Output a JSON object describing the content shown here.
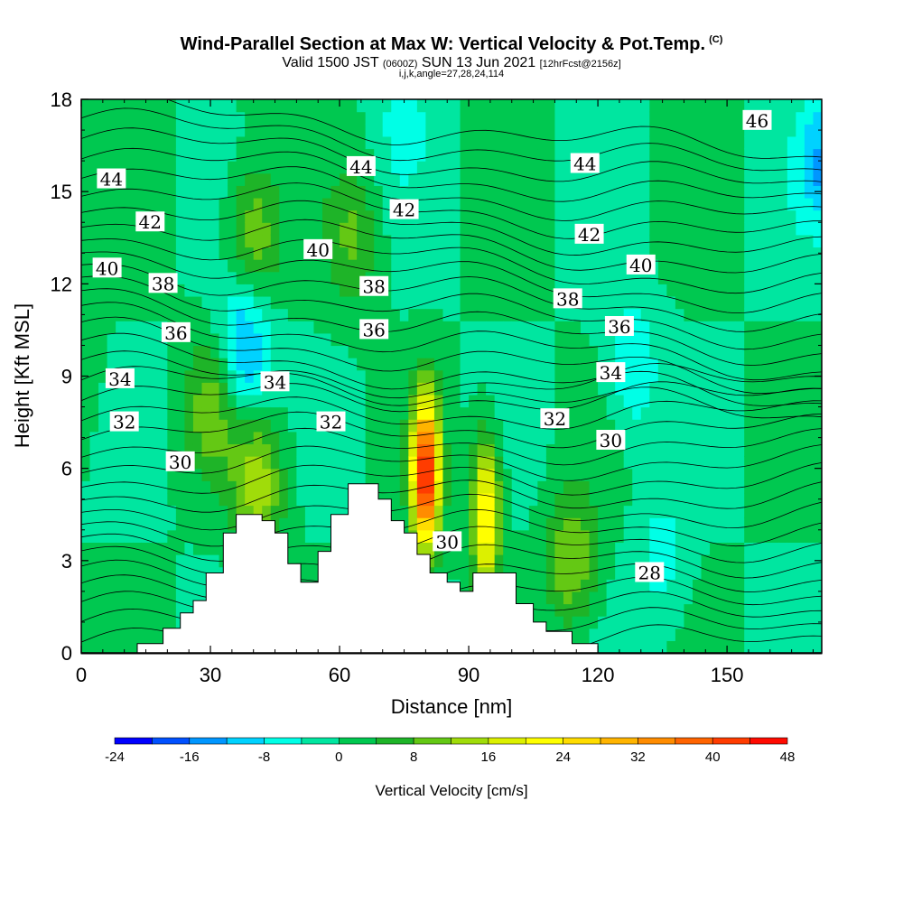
{
  "header": {
    "title": "Wind-Parallel Section at Max W: Vertical Velocity & Pot.Temp.",
    "copyright": "(C)",
    "valid_prefix": "Valid 1500 JST",
    "valid_utc": "(0600Z)",
    "valid_date": "SUN 13 Jun 2021",
    "forecast": "[12hrFcst@2156z]",
    "indices": "i,j,k,angle=27,28,24,114"
  },
  "chart_data": {
    "type": "heatmap",
    "xlabel": "Distance [nm]",
    "ylabel": "Height [Kft MSL]",
    "xlim": [
      0,
      172
    ],
    "ylim": [
      0,
      18
    ],
    "x_ticks": [
      "0",
      "30",
      "60",
      "90",
      "120",
      "150"
    ],
    "x_tick_values": [
      0,
      30,
      60,
      90,
      120,
      150
    ],
    "y_ticks": [
      "0",
      "3",
      "6",
      "9",
      "12",
      "15",
      "18"
    ],
    "y_tick_values": [
      0,
      3,
      6,
      9,
      12,
      15,
      18
    ],
    "colorbar": {
      "label": "Vertical Velocity [cm/s]",
      "tick_labels": [
        "-24",
        "-16",
        "-8",
        "0",
        "8",
        "16",
        "24",
        "32",
        "40",
        "48"
      ],
      "tick_values": [
        -24,
        -16,
        -8,
        0,
        8,
        16,
        24,
        32,
        40,
        48
      ],
      "range": [
        -24,
        48
      ],
      "step": 4,
      "colors": [
        "#0000ff",
        "#0050ff",
        "#0096ff",
        "#00d2ff",
        "#00ffe6",
        "#00e6a0",
        "#00c850",
        "#1eb428",
        "#64c814",
        "#a0dc0a",
        "#dcf000",
        "#ffff00",
        "#ffdc00",
        "#ffb400",
        "#ff8c00",
        "#ff6400",
        "#ff3c00",
        "#ff0a00",
        "#dc0028",
        "#b40050",
        "#8c0078",
        "#5a008c"
      ]
    },
    "theta_contour_labels": [
      {
        "label": "46",
        "x": 157,
        "y": 17.3
      },
      {
        "label": "44",
        "x": 7,
        "y": 15.4
      },
      {
        "label": "44",
        "x": 65,
        "y": 15.8
      },
      {
        "label": "44",
        "x": 117,
        "y": 15.9
      },
      {
        "label": "42",
        "x": 16,
        "y": 14.0
      },
      {
        "label": "42",
        "x": 75,
        "y": 14.4
      },
      {
        "label": "42",
        "x": 118,
        "y": 13.6
      },
      {
        "label": "40",
        "x": 6,
        "y": 12.5
      },
      {
        "label": "40",
        "x": 55,
        "y": 13.1
      },
      {
        "label": "40",
        "x": 130,
        "y": 12.6
      },
      {
        "label": "38",
        "x": 19,
        "y": 12.0
      },
      {
        "label": "38",
        "x": 68,
        "y": 11.9
      },
      {
        "label": "38",
        "x": 113,
        "y": 11.5
      },
      {
        "label": "36",
        "x": 22,
        "y": 10.4
      },
      {
        "label": "36",
        "x": 68,
        "y": 10.5
      },
      {
        "label": "36",
        "x": 125,
        "y": 10.6
      },
      {
        "label": "34",
        "x": 9,
        "y": 8.9
      },
      {
        "label": "34",
        "x": 45,
        "y": 8.8
      },
      {
        "label": "34",
        "x": 123,
        "y": 9.1
      },
      {
        "label": "32",
        "x": 10,
        "y": 7.5
      },
      {
        "label": "32",
        "x": 58,
        "y": 7.5
      },
      {
        "label": "32",
        "x": 110,
        "y": 7.6
      },
      {
        "label": "30",
        "x": 23,
        "y": 6.2
      },
      {
        "label": "30",
        "x": 123,
        "y": 6.9
      },
      {
        "label": "30",
        "x": 85,
        "y": 3.6
      },
      {
        "label": "28",
        "x": 132,
        "y": 2.6
      }
    ],
    "terrain_profile": {
      "x": [
        0,
        13,
        13,
        19,
        19,
        23,
        23,
        26,
        26,
        29,
        29,
        33,
        33,
        36,
        36,
        42,
        42,
        45,
        45,
        48,
        48,
        51,
        51,
        55,
        55,
        58,
        58,
        62,
        62,
        69,
        69,
        72,
        72,
        75,
        75,
        78,
        78,
        81,
        81,
        85,
        85,
        88,
        88,
        91,
        91,
        101,
        101,
        105,
        105,
        108,
        108,
        114,
        114,
        120,
        120,
        172
      ],
      "y": [
        0,
        0,
        0.3,
        0.3,
        0.8,
        0.8,
        1.3,
        1.3,
        1.7,
        1.7,
        2.6,
        2.6,
        3.9,
        3.9,
        4.5,
        4.5,
        4.3,
        4.3,
        3.9,
        3.9,
        2.9,
        2.9,
        2.3,
        2.3,
        3.3,
        3.3,
        4.5,
        4.5,
        5.5,
        5.5,
        5.0,
        5.0,
        4.3,
        4.3,
        3.9,
        3.9,
        3.2,
        3.2,
        2.6,
        2.6,
        2.3,
        2.3,
        2.0,
        2.0,
        2.6,
        2.6,
        1.6,
        1.6,
        1.0,
        1.0,
        0.7,
        0.7,
        0.3,
        0.3,
        0,
        0
      ]
    },
    "w_field_description": [
      {
        "x": 0,
        "y": 9,
        "w": 2
      },
      {
        "x": 40,
        "y": 13.5,
        "w": 12
      },
      {
        "x": 41,
        "y": 5.5,
        "w": 14
      },
      {
        "x": 30,
        "y": 8,
        "w": 10
      },
      {
        "x": 38,
        "y": 10,
        "w": -14
      },
      {
        "x": 80,
        "y": 5.8,
        "w": 46
      },
      {
        "x": 94,
        "y": 4.5,
        "w": 26
      },
      {
        "x": 75,
        "y": 17.5,
        "w": -6
      },
      {
        "x": 128,
        "y": 9.3,
        "w": -8
      },
      {
        "x": 172,
        "y": 16,
        "w": -12
      },
      {
        "x": 114,
        "y": 3,
        "w": 12
      },
      {
        "x": 135,
        "y": 3,
        "w": -6
      },
      {
        "x": 63,
        "y": 13.5,
        "w": 8
      }
    ]
  }
}
